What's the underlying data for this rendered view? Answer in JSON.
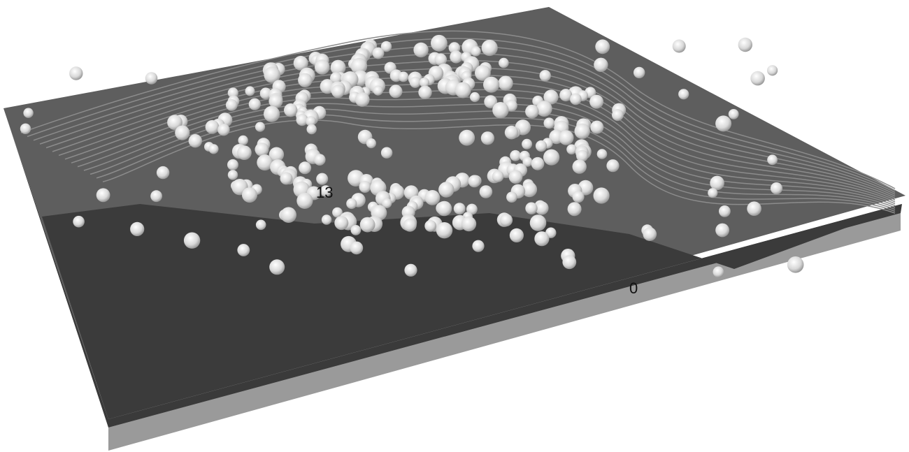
{
  "terrain_labels": [
    "13",
    "0"
  ]
}
